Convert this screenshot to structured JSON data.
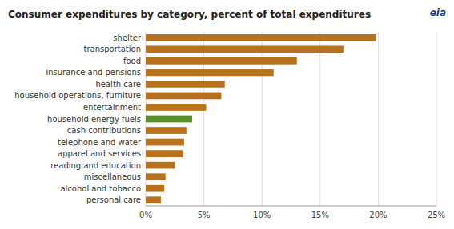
{
  "chart_data": {
    "type": "bar",
    "orientation": "horizontal",
    "title": "Consumer expenditures by category, percent of total expenditures",
    "annotations": [
      "eia"
    ],
    "categories": [
      "personal care",
      "alcohol and tobacco",
      "miscellaneous",
      "reading and education",
      "apparel and services",
      "telephone and water",
      "cash contributions",
      "household energy fuels",
      "entertainment",
      "household operations, furniture",
      "health care",
      "insurance and pensions",
      "food",
      "transportation",
      "shelter"
    ],
    "values": [
      1.3,
      1.6,
      1.7,
      2.5,
      3.2,
      3.3,
      3.5,
      4.0,
      5.2,
      6.5,
      6.8,
      11.0,
      13.0,
      17.0,
      19.8
    ],
    "colors": [
      "#b8721d",
      "#b8721d",
      "#b8721d",
      "#b8721d",
      "#b8721d",
      "#b8721d",
      "#b8721d",
      "#5b8c2a",
      "#b8721d",
      "#b8721d",
      "#b8721d",
      "#b8721d",
      "#b8721d",
      "#b8721d",
      "#b8721d"
    ],
    "xlim": [
      0,
      25
    ],
    "xticks": [
      {
        "value": 0,
        "label": "0%"
      },
      {
        "value": 5,
        "label": "5%"
      },
      {
        "value": 10,
        "label": "10%"
      },
      {
        "value": 15,
        "label": "15%"
      },
      {
        "value": 20,
        "label": "20%"
      },
      {
        "value": 25,
        "label": "25%"
      }
    ],
    "grid": true
  }
}
